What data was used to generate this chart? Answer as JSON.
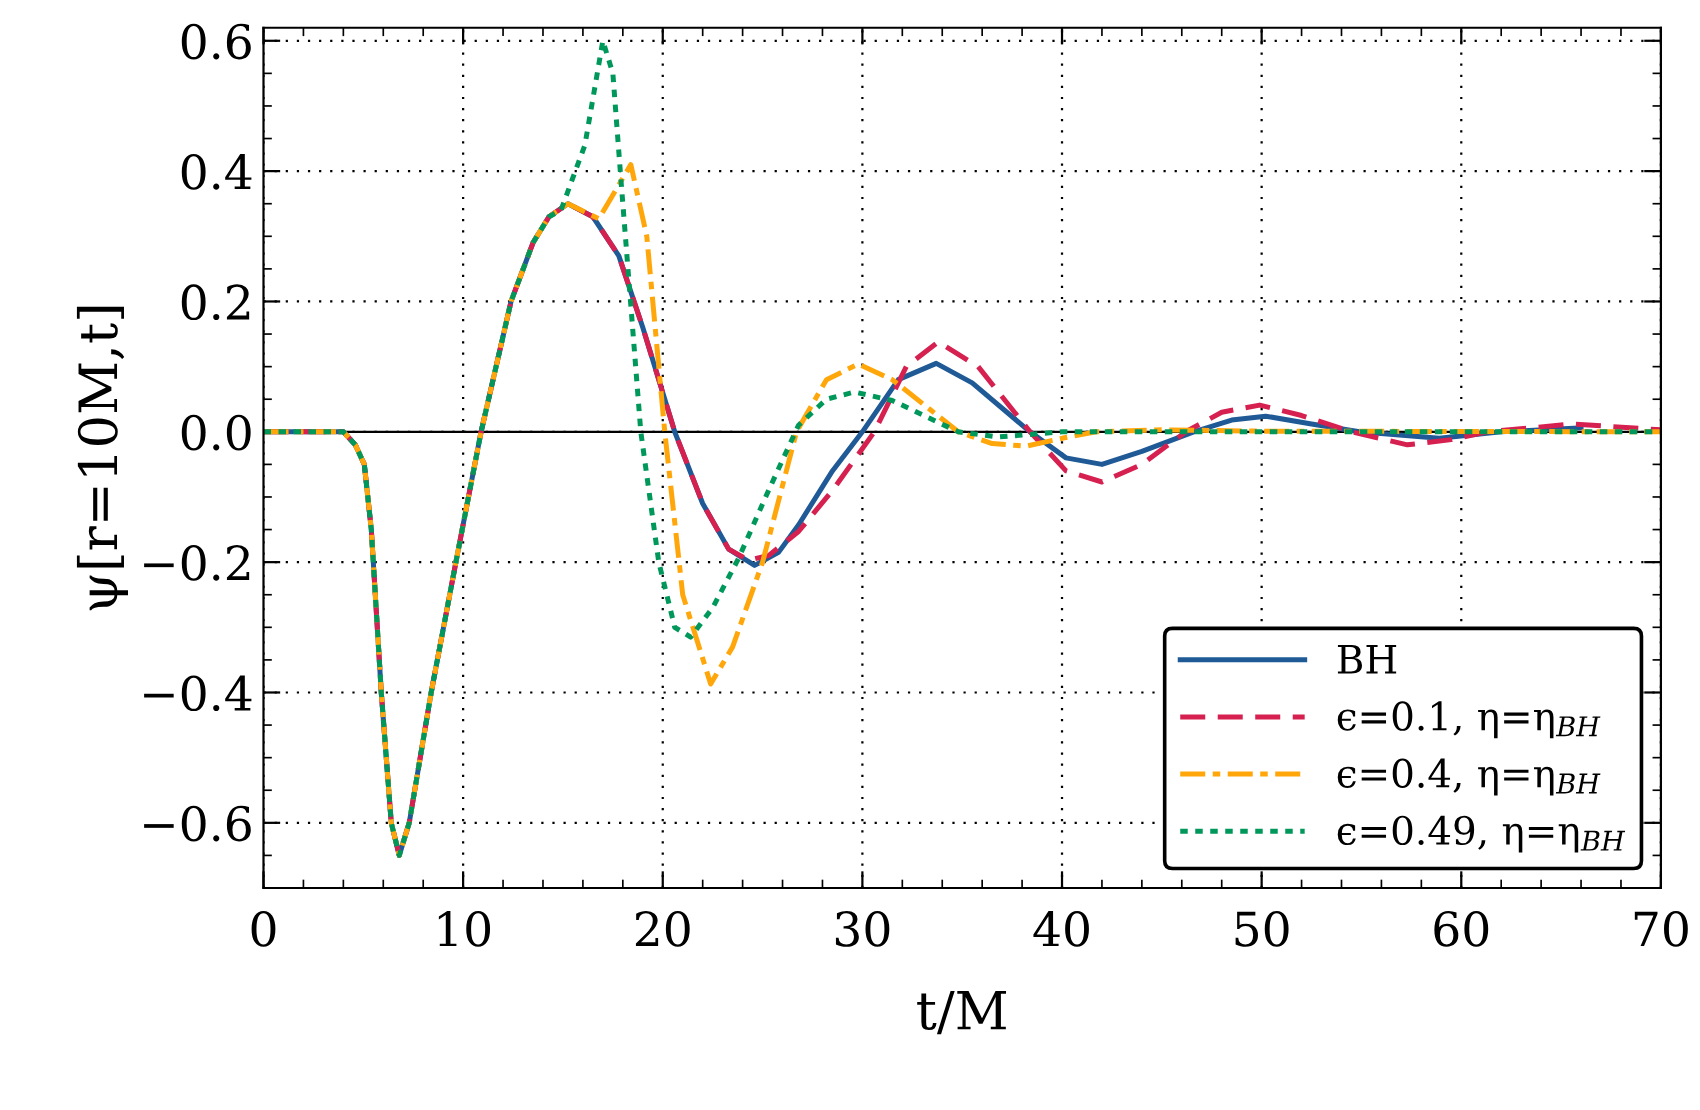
{
  "chart_data": {
    "type": "line",
    "xlabel": "t/M",
    "ylabel": "ψ[r=10M,t]",
    "xlim": [
      0,
      70
    ],
    "xticks": [
      0,
      10,
      20,
      30,
      40,
      50,
      60,
      70
    ],
    "ylim": [
      -0.7,
      0.62
    ],
    "yticks": [
      {
        "value": -0.6,
        "label": "−0.6"
      },
      {
        "value": -0.4,
        "label": "−0.4"
      },
      {
        "value": -0.2,
        "label": "−0.2"
      },
      {
        "value": 0,
        "label": "0.0"
      },
      {
        "value": 0.2,
        "label": "0.2"
      },
      {
        "value": 0.4,
        "label": "0.4"
      },
      {
        "value": 0.6,
        "label": "0.6"
      }
    ],
    "grid": true,
    "legend": "bottom right",
    "ref_lines": [
      {
        "axis": "y",
        "value": 0,
        "color": "#000000"
      }
    ],
    "series": [
      {
        "name": "BH",
        "color": "#1f5a96",
        "line_style": "solid",
        "x": [
          0,
          4.0,
          4.6,
          5.05,
          5.4,
          5.9,
          6.4,
          6.8,
          7.3,
          8.4,
          9.7,
          10.9,
          12.4,
          13.5,
          14.3,
          15.25,
          16.5,
          17.8,
          19,
          20.6,
          22,
          23.3,
          24.6,
          25.8,
          26.8,
          28.5,
          30,
          31.8,
          33.7,
          35.5,
          38.4,
          40.2,
          42,
          44,
          46.6,
          48.5,
          50.2,
          52.5,
          54.9,
          58.9,
          62,
          66
        ],
        "values": [
          0,
          0,
          -0.02,
          -0.05,
          -0.15,
          -0.4,
          -0.6,
          -0.65,
          -0.6,
          -0.4,
          -0.19,
          0,
          0.2,
          0.29,
          0.33,
          0.35,
          0.33,
          0.27,
          0.16,
          0,
          -0.11,
          -0.18,
          -0.205,
          -0.185,
          -0.143,
          -0.06,
          0,
          0.08,
          0.105,
          0.075,
          0,
          -0.04,
          -0.05,
          -0.03,
          0,
          0.018,
          0.024,
          0.012,
          0,
          -0.01,
          0,
          0.006
        ]
      },
      {
        "name": "ϵ=0.1, η=η$_{BH}$",
        "color": "#d6204f",
        "line_style": "dashed",
        "x": [
          0,
          4.0,
          4.6,
          5.05,
          5.4,
          5.9,
          6.4,
          6.8,
          7.3,
          8.4,
          9.7,
          10.9,
          12.4,
          13.5,
          14.3,
          15.25,
          16.5,
          17.8,
          19,
          20.6,
          22,
          23.3,
          24.3,
          25.3,
          26.8,
          28.5,
          30.6,
          32.2,
          33.8,
          35.8,
          38.4,
          40.2,
          42,
          44,
          46.2,
          48,
          49.9,
          52,
          54.5,
          57.3,
          59.5,
          61.3,
          65.6,
          70
        ],
        "values": [
          0,
          0,
          -0.02,
          -0.05,
          -0.15,
          -0.4,
          -0.6,
          -0.65,
          -0.6,
          -0.4,
          -0.19,
          0,
          0.2,
          0.29,
          0.33,
          0.35,
          0.33,
          0.27,
          0.16,
          0,
          -0.11,
          -0.18,
          -0.197,
          -0.19,
          -0.153,
          -0.09,
          0,
          0.1,
          0.138,
          0.1,
          0,
          -0.06,
          -0.077,
          -0.05,
          0,
          0.03,
          0.041,
          0.025,
          0,
          -0.02,
          -0.012,
          0,
          0.012,
          0.003
        ]
      },
      {
        "name": "ϵ=0.4, η=η$_{BH}$",
        "color": "#ffa60a",
        "line_style": "dashdot",
        "x": [
          0,
          4.0,
          4.6,
          5.05,
          5.4,
          5.9,
          6.4,
          6.8,
          7.3,
          8.4,
          9.7,
          10.9,
          12.4,
          13.5,
          14.3,
          15.25,
          16.8,
          18.4,
          19.2,
          20.1,
          21,
          22.4,
          23.5,
          25,
          26.7,
          28.2,
          29.8,
          31.5,
          34.8,
          36.5,
          38.2,
          40,
          41.7,
          45,
          50,
          70
        ],
        "values": [
          0,
          0,
          -0.02,
          -0.05,
          -0.15,
          -0.4,
          -0.6,
          -0.65,
          -0.6,
          -0.4,
          -0.19,
          0,
          0.2,
          0.29,
          0.33,
          0.35,
          0.327,
          0.41,
          0.3,
          0,
          -0.25,
          -0.387,
          -0.33,
          -0.2,
          0,
          0.08,
          0.104,
          0.08,
          0,
          -0.018,
          -0.022,
          -0.01,
          0,
          0.003,
          0.001,
          0
        ]
      },
      {
        "name": "ϵ=0.49, η=η$_{BH}$",
        "color": "#00985a",
        "line_style": "dotted",
        "x": [
          0,
          4.0,
          4.6,
          5.05,
          5.4,
          5.9,
          6.4,
          6.8,
          7.3,
          8.4,
          9.7,
          10.9,
          12.4,
          13.5,
          14.3,
          14.9,
          16.1,
          17,
          17.5,
          17.9,
          18.9,
          19.8,
          20.6,
          21.4,
          22.5,
          23.8,
          25.3,
          26.8,
          28.2,
          29.6,
          31.5,
          34.8,
          36.8,
          40,
          70
        ],
        "values": [
          0,
          0,
          -0.02,
          -0.05,
          -0.15,
          -0.4,
          -0.6,
          -0.65,
          -0.6,
          -0.4,
          -0.19,
          0,
          0.2,
          0.29,
          0.33,
          0.34,
          0.44,
          0.6,
          0.55,
          0.389,
          0,
          -0.2,
          -0.3,
          -0.315,
          -0.27,
          -0.194,
          -0.09,
          0.01,
          0.05,
          0.061,
          0.048,
          0,
          -0.008,
          0,
          0
        ]
      }
    ]
  }
}
